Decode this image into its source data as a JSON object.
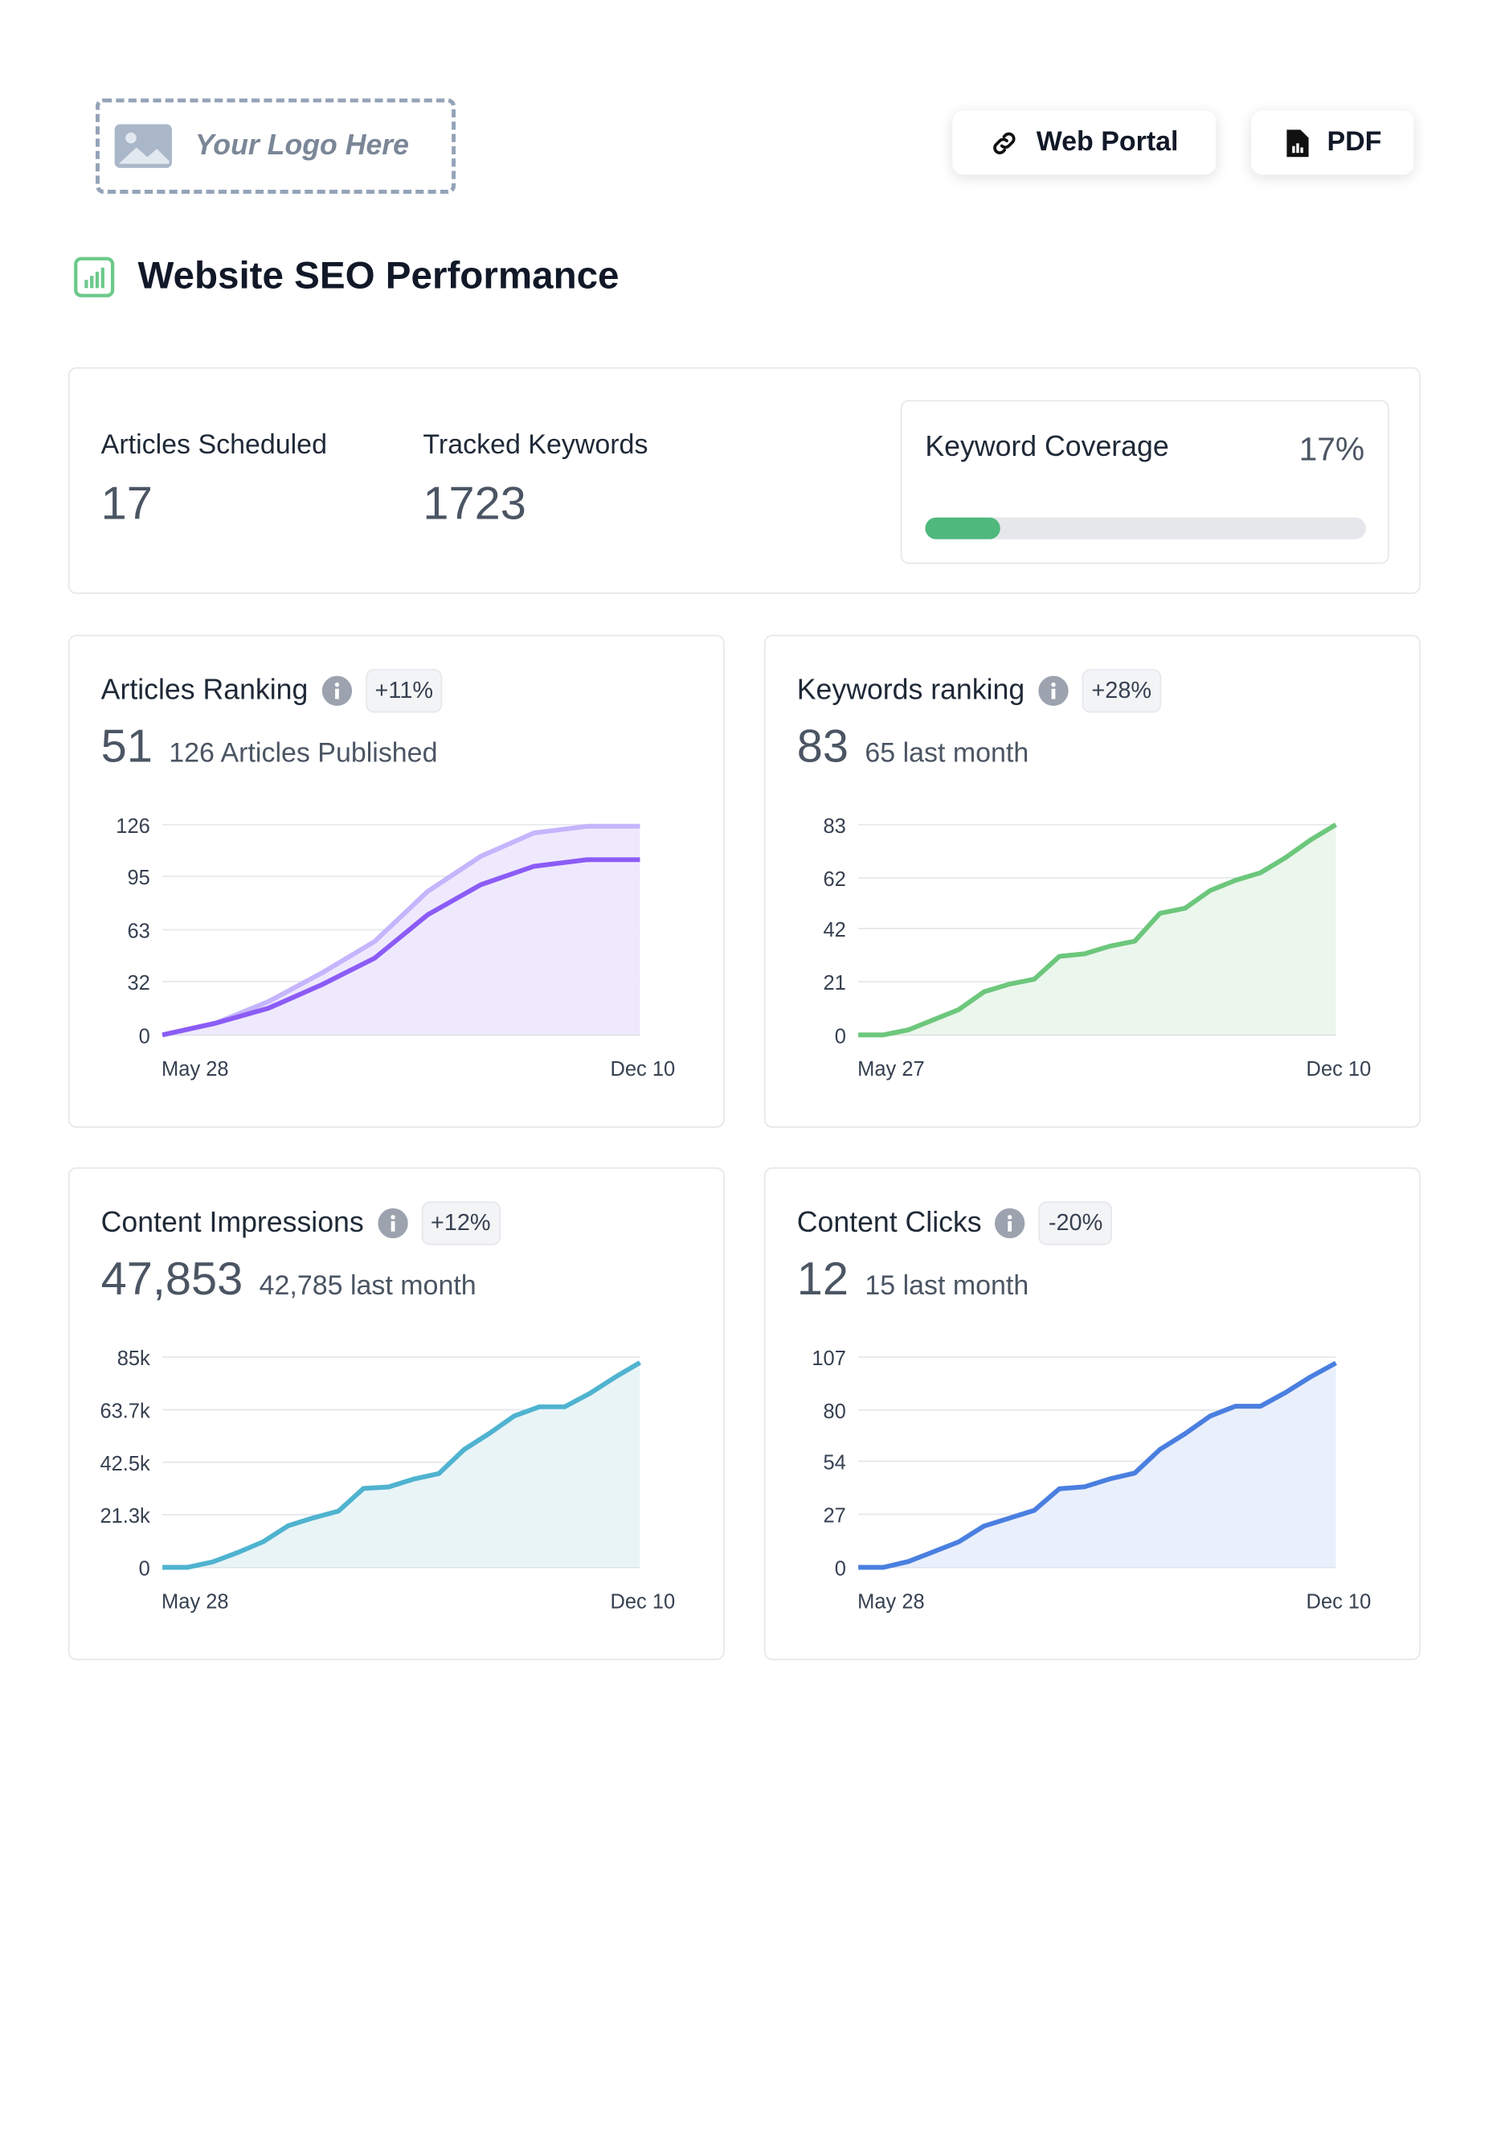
{
  "header": {
    "logo_text": "Your Logo Here",
    "buttons": [
      "Web Portal",
      "PDF"
    ]
  },
  "title": "Website SEO Performance",
  "summary": {
    "stats": [
      {
        "label": "Articles Scheduled",
        "value": 17
      },
      {
        "label": "Tracked Keywords",
        "value": 1723
      }
    ],
    "coverage": {
      "label": "Keyword Coverage",
      "value": 17,
      "value_label": "17%",
      "color": "#4fb87c"
    }
  },
  "cards": [
    {
      "title": "Articles Ranking",
      "badge": "+11%",
      "value": 51,
      "subtitle": "126 Articles Published",
      "chart": {
        "type": "line",
        "categories": [
          "May 28",
          null,
          null,
          null,
          null,
          null,
          null,
          null,
          null,
          "Dec 10"
        ],
        "ylim": [
          0,
          126
        ],
        "yticks": [
          0,
          32,
          63,
          95,
          126
        ],
        "grid": true,
        "series": [
          {
            "color": "#c4b5fd",
            "fill": "#efe9fd",
            "values": [
              0,
              7,
              20,
              37,
              56,
              86,
              107,
              121,
              125,
              125
            ]
          },
          {
            "color": "#8b5cf6",
            "values": [
              0,
              7,
              16,
              30,
              46,
              72,
              90,
              101,
              105,
              105
            ]
          }
        ]
      }
    },
    {
      "title": "Keywords ranking",
      "badge": "+28%",
      "value": 83,
      "subtitle": "65 last month",
      "chart": {
        "type": "line",
        "categories": [
          "May 27",
          null,
          null,
          null,
          null,
          null,
          null,
          null,
          null,
          null,
          null,
          null,
          null,
          null,
          null,
          null,
          null,
          null,
          null,
          "Dec 10"
        ],
        "ylim": [
          0,
          83
        ],
        "yticks": [
          0,
          21,
          42,
          62,
          83
        ],
        "grid": true,
        "series": [
          {
            "color": "#6cc77c",
            "fill": "#ebf6ed",
            "values": [
              0,
              0,
              2,
              6,
              10,
              17,
              20,
              22,
              31,
              32,
              35,
              37,
              48,
              50,
              57,
              61,
              64,
              70,
              77,
              83
            ]
          }
        ]
      }
    },
    {
      "title": "Content Impressions",
      "badge": "+12%",
      "value": "47,853",
      "subtitle": "42,785 last month",
      "chart": {
        "type": "line",
        "categories": [
          "May 28",
          null,
          null,
          null,
          null,
          null,
          null,
          null,
          null,
          null,
          null,
          null,
          null,
          null,
          null,
          null,
          null,
          null,
          null,
          "Dec 10"
        ],
        "ylim": [
          0,
          85000
        ],
        "yticks": [
          0,
          {
            "value": 21300,
            "label": "21.3k"
          },
          {
            "value": 42500,
            "label": "42.5k"
          },
          {
            "value": 63700,
            "label": "63.7k"
          },
          {
            "value": 85000,
            "label": "85k"
          }
        ],
        "grid": true,
        "series": [
          {
            "color": "#4fb3cf",
            "fill": "#e9f4f7",
            "values": [
              0,
              0,
              2200,
              6000,
              10300,
              16800,
              20000,
              22700,
              31900,
              32500,
              35700,
              37900,
              47600,
              54100,
              61200,
              64900,
              64900,
              70300,
              76800,
              82800
            ]
          }
        ]
      }
    },
    {
      "title": "Content Clicks",
      "badge": "-20%",
      "value": 12,
      "subtitle": "15 last month",
      "chart": {
        "type": "line",
        "categories": [
          "May 28",
          null,
          null,
          null,
          null,
          null,
          null,
          null,
          null,
          null,
          null,
          null,
          null,
          null,
          null,
          null,
          null,
          null,
          null,
          "Dec 10"
        ],
        "ylim": [
          0,
          107
        ],
        "yticks": [
          0,
          27,
          54,
          80,
          107
        ],
        "grid": true,
        "series": [
          {
            "color": "#4a7fe0",
            "fill": "#eaeffc",
            "values": [
              0,
              0,
              3,
              8,
              13,
              21,
              25,
              29,
              40,
              41,
              45,
              48,
              60,
              68,
              77,
              82,
              82,
              89,
              97,
              104
            ]
          }
        ]
      }
    }
  ]
}
